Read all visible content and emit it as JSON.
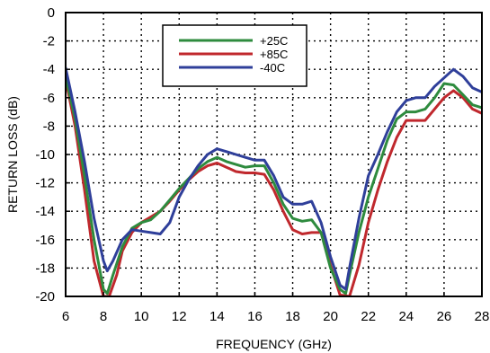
{
  "chart_data": {
    "type": "line",
    "title": "",
    "xlabel": "FREQUENCY (GHz)",
    "ylabel": "RETURN LOSS (dB)",
    "xlim": [
      6,
      28
    ],
    "ylim": [
      -20,
      0
    ],
    "xticks": [
      6,
      8,
      10,
      12,
      14,
      16,
      18,
      20,
      22,
      24,
      26,
      28
    ],
    "yticks": [
      0,
      -2,
      -4,
      -6,
      -8,
      -10,
      -12,
      -14,
      -16,
      -18,
      -20
    ],
    "xtick_labels": [
      "6",
      "8",
      "10",
      "12",
      "14",
      "16",
      "18",
      "20",
      "22",
      "24",
      "26",
      "28"
    ],
    "ytick_labels": [
      "0",
      "-2",
      "-4",
      "-6",
      "-8",
      "-10",
      "-12",
      "-14",
      "-16",
      "-18",
      "-20"
    ],
    "grid": true,
    "grid_style": "dotted",
    "legend_position": "top-center",
    "series": [
      {
        "name": "+25C",
        "color": "#2e8b3e",
        "x": [
          6,
          6.5,
          7,
          7.5,
          8,
          8.2,
          8.5,
          9,
          9.5,
          10,
          10.5,
          11,
          11.5,
          12,
          12.5,
          13,
          13.5,
          14,
          14.5,
          15,
          15.5,
          16,
          16.5,
          17,
          17.5,
          18,
          18.5,
          19,
          19.5,
          20,
          20.5,
          20.8,
          21,
          21.5,
          22,
          22.5,
          23,
          23.5,
          24,
          24.5,
          25,
          25.5,
          26,
          26.5,
          27,
          27.5,
          28
        ],
        "y": [
          -4.5,
          -7.5,
          -11.5,
          -16.0,
          -19.5,
          -19.8,
          -18.5,
          -16.5,
          -15.2,
          -14.8,
          -14.6,
          -14.0,
          -13.2,
          -12.4,
          -11.7,
          -11.0,
          -10.5,
          -10.2,
          -10.5,
          -10.7,
          -10.9,
          -10.8,
          -10.8,
          -12.0,
          -13.5,
          -14.5,
          -14.7,
          -14.6,
          -15.5,
          -18.0,
          -19.5,
          -19.8,
          -18.5,
          -15.5,
          -13.0,
          -11.0,
          -9.0,
          -7.5,
          -7.0,
          -7.0,
          -6.8,
          -6.0,
          -5.0,
          -5.1,
          -5.8,
          -6.5,
          -6.7
        ]
      },
      {
        "name": "+85C",
        "color": "#c0282d",
        "x": [
          6,
          6.5,
          7,
          7.5,
          8,
          8.3,
          8.7,
          9,
          9.5,
          10,
          10.5,
          11,
          11.5,
          12,
          12.5,
          13,
          13.5,
          14,
          14.5,
          15,
          15.5,
          16,
          16.5,
          17,
          17.5,
          18,
          18.5,
          19,
          19.5,
          20,
          20.5,
          21,
          21.5,
          22,
          22.5,
          23,
          23.5,
          24,
          24.5,
          25,
          25.5,
          26,
          26.5,
          27,
          27.5,
          28
        ],
        "y": [
          -4.7,
          -8.0,
          -12.5,
          -17.5,
          -20.0,
          -20.0,
          -18.5,
          -16.8,
          -15.5,
          -14.8,
          -14.4,
          -14.0,
          -13.3,
          -12.5,
          -11.8,
          -11.2,
          -10.8,
          -10.6,
          -10.9,
          -11.2,
          -11.3,
          -11.3,
          -11.4,
          -12.5,
          -14.0,
          -15.3,
          -15.6,
          -15.5,
          -15.5,
          -17.8,
          -19.9,
          -20.0,
          -17.8,
          -14.8,
          -12.5,
          -10.5,
          -8.8,
          -7.6,
          -7.6,
          -7.6,
          -6.8,
          -6.0,
          -5.5,
          -6.0,
          -6.8,
          -7.1
        ]
      },
      {
        "name": "-40C",
        "color": "#2f3f9a",
        "x": [
          6,
          6.5,
          7,
          7.5,
          8,
          8.2,
          8.5,
          9,
          9.5,
          10,
          10.5,
          11,
          11.5,
          12,
          12.5,
          13,
          13.5,
          14,
          14.5,
          15,
          15.5,
          16,
          16.5,
          17,
          17.5,
          18,
          18.5,
          19,
          19.5,
          20,
          20.5,
          20.8,
          21,
          21.5,
          22,
          22.5,
          23,
          23.5,
          24,
          24.5,
          25,
          25.5,
          26,
          26.5,
          27,
          27.5,
          28
        ],
        "y": [
          -3.9,
          -7.0,
          -10.5,
          -14.5,
          -17.5,
          -18.2,
          -17.5,
          -16.0,
          -15.3,
          -15.4,
          -15.5,
          -15.6,
          -14.8,
          -13.0,
          -11.8,
          -10.8,
          -10.0,
          -9.6,
          -9.8,
          -10.0,
          -10.2,
          -10.4,
          -10.4,
          -11.5,
          -13.0,
          -13.5,
          -13.5,
          -13.3,
          -14.8,
          -17.2,
          -19.2,
          -19.5,
          -18.0,
          -14.5,
          -11.5,
          -10.0,
          -8.4,
          -7.0,
          -6.2,
          -6.0,
          -6.0,
          -5.2,
          -4.6,
          -4.0,
          -4.5,
          -5.3,
          -5.6
        ]
      }
    ]
  }
}
